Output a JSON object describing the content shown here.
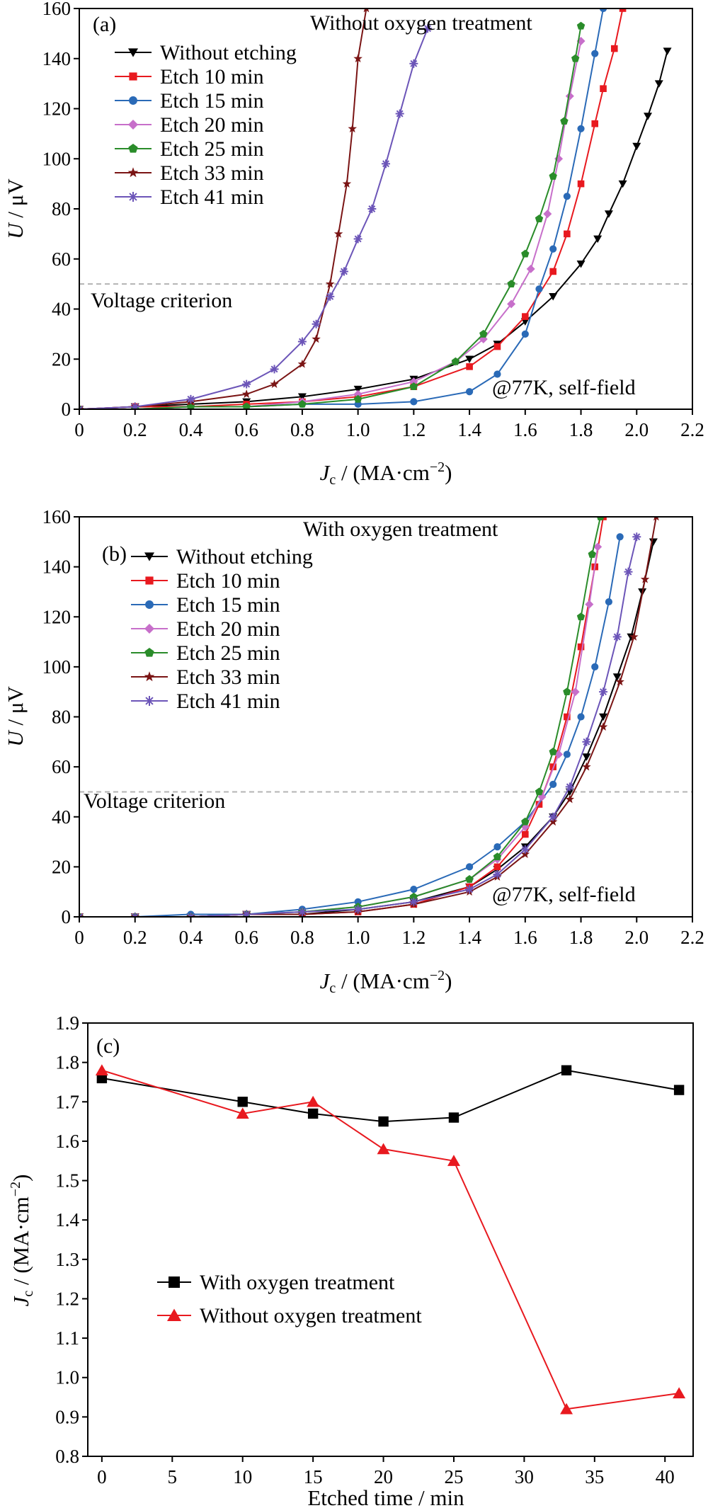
{
  "chart_data": [
    {
      "type": "line",
      "panel_label": "(a)",
      "title": "Without oxygen treatment",
      "xlabel": {
        "sym": "J",
        "sub": "c",
        "unit": " / (MA·cm",
        "sup": "−2",
        "close": ")"
      },
      "ylabel": {
        "sym": "U",
        "unit": " / μV"
      },
      "xlim": [
        0,
        2.2
      ],
      "ylim": [
        0,
        160
      ],
      "xticks": [
        0,
        0.2,
        0.4,
        0.6,
        0.8,
        1.0,
        1.2,
        1.4,
        1.6,
        1.8,
        2.0,
        2.2
      ],
      "xtick_labels": [
        "0",
        "0.2",
        "0.4",
        "0.6",
        "0.8",
        "1.0",
        "1.2",
        "1.4",
        "1.6",
        "1.8",
        "2.0",
        "2.2"
      ],
      "yticks": [
        0,
        20,
        40,
        60,
        80,
        100,
        120,
        140,
        160
      ],
      "ytick_labels": [
        "0",
        "20",
        "40",
        "60",
        "80",
        "100",
        "120",
        "140",
        "160"
      ],
      "criterion": {
        "value": 50,
        "label": "Voltage criterion"
      },
      "annotation": "@77K, self-field",
      "legend_position": "top-left",
      "series": [
        {
          "name": "Without etching",
          "color": "#000000",
          "marker": "triangle-down",
          "x": [
            0,
            0.2,
            0.4,
            0.6,
            0.8,
            1.0,
            1.2,
            1.4,
            1.5,
            1.6,
            1.7,
            1.8,
            1.86,
            1.9,
            1.95,
            2.0,
            2.04,
            2.08,
            2.11
          ],
          "y": [
            0,
            1,
            2,
            3,
            5,
            8,
            12,
            20,
            26,
            35,
            45,
            58,
            68,
            78,
            90,
            105,
            117,
            130,
            143
          ]
        },
        {
          "name": "Etch 10 min",
          "color": "#e8191f",
          "marker": "square",
          "x": [
            0,
            0.2,
            0.4,
            0.6,
            0.8,
            1.0,
            1.2,
            1.4,
            1.5,
            1.6,
            1.7,
            1.75,
            1.8,
            1.85,
            1.88,
            1.92,
            1.95
          ],
          "y": [
            0,
            1,
            1,
            2,
            3,
            5,
            9,
            17,
            25,
            37,
            55,
            70,
            90,
            114,
            128,
            144,
            160
          ]
        },
        {
          "name": "Etch 15 min",
          "color": "#2a6ab7",
          "marker": "circle",
          "x": [
            0,
            0.2,
            0.4,
            0.6,
            0.8,
            1.0,
            1.2,
            1.4,
            1.5,
            1.6,
            1.65,
            1.7,
            1.75,
            1.8,
            1.85,
            1.88
          ],
          "y": [
            0,
            0,
            1,
            1,
            2,
            2,
            3,
            7,
            14,
            30,
            48,
            64,
            85,
            112,
            142,
            160
          ]
        },
        {
          "name": "Etch 20 min",
          "color": "#c76fca",
          "marker": "diamond",
          "x": [
            0,
            0.2,
            0.4,
            0.6,
            0.8,
            1.0,
            1.2,
            1.35,
            1.45,
            1.55,
            1.62,
            1.68,
            1.72,
            1.76,
            1.8
          ],
          "y": [
            0,
            0,
            1,
            1,
            3,
            6,
            11,
            19,
            28,
            42,
            56,
            78,
            100,
            125,
            147
          ]
        },
        {
          "name": "Etch 25 min",
          "color": "#2a8c2a",
          "marker": "pentagon",
          "x": [
            0,
            0.2,
            0.4,
            0.6,
            0.8,
            1.0,
            1.2,
            1.35,
            1.45,
            1.55,
            1.6,
            1.65,
            1.7,
            1.74,
            1.78,
            1.8
          ],
          "y": [
            0,
            0,
            1,
            1,
            2,
            4,
            9,
            19,
            30,
            50,
            62,
            76,
            93,
            115,
            140,
            153
          ]
        },
        {
          "name": "Etch 33 min",
          "color": "#7a1414",
          "marker": "star",
          "x": [
            0,
            0.2,
            0.4,
            0.6,
            0.7,
            0.8,
            0.85,
            0.9,
            0.93,
            0.96,
            0.98,
            1.0,
            1.03
          ],
          "y": [
            0,
            1,
            3,
            6,
            10,
            18,
            28,
            50,
            70,
            90,
            112,
            140,
            160
          ]
        },
        {
          "name": "Etch 41 min",
          "color": "#6c55b8",
          "marker": "asterisk",
          "x": [
            0,
            0.2,
            0.4,
            0.6,
            0.7,
            0.8,
            0.85,
            0.9,
            0.95,
            1.0,
            1.05,
            1.1,
            1.15,
            1.2,
            1.25
          ],
          "y": [
            0,
            1,
            4,
            10,
            16,
            27,
            34,
            45,
            55,
            68,
            80,
            98,
            118,
            138,
            152
          ]
        }
      ]
    },
    {
      "type": "line",
      "panel_label": "(b)",
      "title": "With oxygen treatment",
      "xlabel": {
        "sym": "J",
        "sub": "c",
        "unit": " / (MA·cm",
        "sup": "−2",
        "close": ")"
      },
      "ylabel": {
        "sym": "U",
        "unit": " / μV"
      },
      "xlim": [
        0,
        2.2
      ],
      "ylim": [
        0,
        160
      ],
      "xticks": [
        0,
        0.2,
        0.4,
        0.6,
        0.8,
        1.0,
        1.2,
        1.4,
        1.6,
        1.8,
        2.0,
        2.2
      ],
      "xtick_labels": [
        "0",
        "0.2",
        "0.4",
        "0.6",
        "0.8",
        "1.0",
        "1.2",
        "1.4",
        "1.6",
        "1.8",
        "2.0",
        "2.2"
      ],
      "yticks": [
        0,
        20,
        40,
        60,
        80,
        100,
        120,
        140,
        160
      ],
      "ytick_labels": [
        "0",
        "20",
        "40",
        "60",
        "80",
        "100",
        "120",
        "140",
        "160"
      ],
      "criterion": {
        "value": 50,
        "label": "Voltage criterion"
      },
      "annotation": "@77K, self-field",
      "legend_position": "top-left",
      "series": [
        {
          "name": "Without etching",
          "color": "#000000",
          "marker": "triangle-down",
          "x": [
            0,
            0.2,
            0.4,
            0.6,
            0.8,
            1.0,
            1.2,
            1.4,
            1.5,
            1.6,
            1.7,
            1.76,
            1.82,
            1.88,
            1.93,
            1.98,
            2.02,
            2.06
          ],
          "y": [
            0,
            0,
            0,
            1,
            1,
            3,
            6,
            12,
            19,
            28,
            40,
            50,
            64,
            80,
            96,
            112,
            130,
            150
          ]
        },
        {
          "name": "Etch 10 min",
          "color": "#e8191f",
          "marker": "square",
          "x": [
            0,
            0.2,
            0.4,
            0.6,
            0.8,
            1.0,
            1.2,
            1.4,
            1.5,
            1.6,
            1.65,
            1.7,
            1.75,
            1.8,
            1.85,
            1.88
          ],
          "y": [
            0,
            0,
            0,
            1,
            1,
            2,
            5,
            12,
            20,
            33,
            45,
            60,
            80,
            108,
            140,
            160
          ]
        },
        {
          "name": "Etch 15 min",
          "color": "#2a6ab7",
          "marker": "circle",
          "x": [
            0,
            0.2,
            0.4,
            0.6,
            0.8,
            1.0,
            1.2,
            1.4,
            1.5,
            1.6,
            1.7,
            1.75,
            1.8,
            1.85,
            1.9,
            1.94
          ],
          "y": [
            0,
            0,
            1,
            1,
            3,
            6,
            11,
            20,
            28,
            38,
            53,
            65,
            80,
            100,
            126,
            152
          ]
        },
        {
          "name": "Etch 20 min",
          "color": "#c76fca",
          "marker": "diamond",
          "x": [
            0,
            0.2,
            0.4,
            0.6,
            0.8,
            1.0,
            1.2,
            1.4,
            1.5,
            1.6,
            1.66,
            1.72,
            1.78,
            1.83,
            1.86
          ],
          "y": [
            0,
            0,
            0,
            1,
            2,
            4,
            8,
            15,
            23,
            36,
            48,
            65,
            90,
            125,
            148
          ]
        },
        {
          "name": "Etch 25 min",
          "color": "#2a8c2a",
          "marker": "pentagon",
          "x": [
            0,
            0.2,
            0.4,
            0.6,
            0.8,
            1.0,
            1.2,
            1.4,
            1.5,
            1.6,
            1.65,
            1.7,
            1.75,
            1.8,
            1.84,
            1.87
          ],
          "y": [
            0,
            0,
            0,
            1,
            2,
            4,
            8,
            15,
            24,
            38,
            50,
            66,
            90,
            120,
            145,
            160
          ]
        },
        {
          "name": "Etch 33 min",
          "color": "#7a1414",
          "marker": "star",
          "x": [
            0,
            0.2,
            0.4,
            0.6,
            0.8,
            1.0,
            1.2,
            1.4,
            1.5,
            1.6,
            1.7,
            1.76,
            1.82,
            1.88,
            1.94,
            1.99,
            2.03,
            2.07
          ],
          "y": [
            0,
            0,
            0,
            1,
            1,
            2,
            5,
            10,
            16,
            25,
            38,
            47,
            60,
            76,
            94,
            112,
            135,
            160
          ]
        },
        {
          "name": "Etch 41 min",
          "color": "#6c55b8",
          "marker": "asterisk",
          "x": [
            0,
            0.2,
            0.4,
            0.6,
            0.8,
            1.0,
            1.2,
            1.4,
            1.5,
            1.6,
            1.7,
            1.76,
            1.82,
            1.88,
            1.93,
            1.97,
            2.0
          ],
          "y": [
            0,
            0,
            0,
            1,
            2,
            3,
            6,
            11,
            17,
            27,
            40,
            52,
            70,
            90,
            112,
            138,
            152
          ]
        }
      ]
    },
    {
      "type": "line",
      "panel_label": "(c)",
      "xlabel": {
        "text": "Etched time / min"
      },
      "ylabel": {
        "sym": "J",
        "sub": "c",
        "unit": " / (MA·cm",
        "sup": "−2",
        "close": ")"
      },
      "xlim": [
        -1,
        42
      ],
      "ylim": [
        0.8,
        1.9
      ],
      "xticks": [
        0,
        5,
        10,
        15,
        20,
        25,
        30,
        35,
        40
      ],
      "xtick_labels": [
        "0",
        "5",
        "10",
        "15",
        "20",
        "25",
        "30",
        "35",
        "40"
      ],
      "yticks": [
        0.8,
        0.9,
        1.0,
        1.1,
        1.2,
        1.3,
        1.4,
        1.5,
        1.6,
        1.7,
        1.8,
        1.9
      ],
      "ytick_labels": [
        "0.8",
        "0.9",
        "1.0",
        "1.1",
        "1.2",
        "1.3",
        "1.4",
        "1.5",
        "1.6",
        "1.7",
        "1.8",
        "1.9"
      ],
      "legend_position": "lower-left",
      "series": [
        {
          "name": "With oxygen treatment",
          "color": "#000000",
          "marker": "square",
          "x": [
            0,
            10,
            15,
            20,
            25,
            33,
            41
          ],
          "y": [
            1.76,
            1.7,
            1.67,
            1.65,
            1.66,
            1.78,
            1.73
          ]
        },
        {
          "name": "Without oxygen treatment",
          "color": "#e8191f",
          "marker": "triangle-up",
          "x": [
            0,
            10,
            15,
            20,
            25,
            33,
            41
          ],
          "y": [
            1.78,
            1.67,
            1.7,
            1.58,
            1.55,
            0.92,
            0.96
          ]
        }
      ]
    }
  ]
}
